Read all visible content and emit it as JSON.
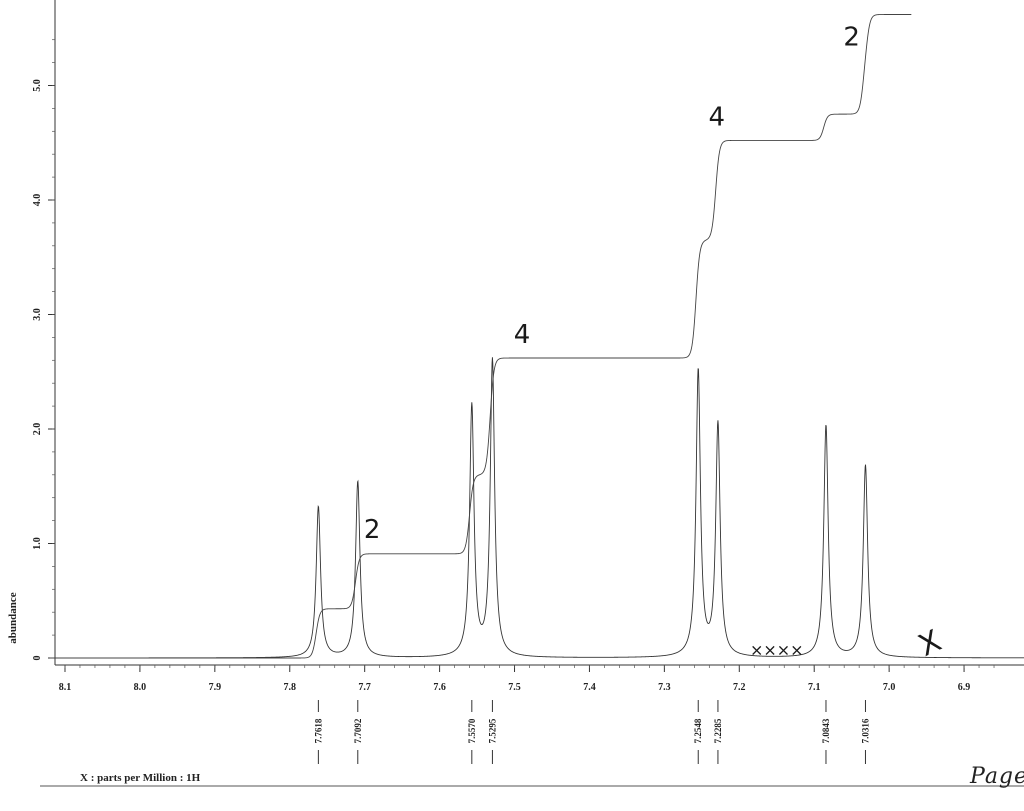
{
  "chart_data": {
    "type": "line",
    "xlabel": "X : parts per Million : 1H",
    "ylabel": "abundance",
    "xlim": [
      8.12,
      6.82
    ],
    "ylim": [
      0,
      5.7
    ],
    "x_ticks": [
      "8.1",
      "8.0",
      "7.9",
      "7.8",
      "7.7",
      "7.6",
      "7.5",
      "7.4",
      "7.3",
      "7.2",
      "7.1",
      "7.0",
      "6.9"
    ],
    "y_ticks": [
      "0",
      "1.0",
      "2.0",
      "3.0",
      "4.0",
      "5.0"
    ],
    "peaks": [
      {
        "ppm": 7.7618,
        "label": "7.7618",
        "height": 1.32
      },
      {
        "ppm": 7.7092,
        "label": "7.7092",
        "height": 1.54
      },
      {
        "ppm": 7.557,
        "label": "7.5570",
        "height": 2.19
      },
      {
        "ppm": 7.5295,
        "label": "7.5295",
        "height": 2.59
      },
      {
        "ppm": 7.2548,
        "label": "7.2548",
        "height": 2.5
      },
      {
        "ppm": 7.2285,
        "label": "7.2285",
        "height": 2.03
      },
      {
        "ppm": 7.0843,
        "label": "7.0843",
        "height": 2.03
      },
      {
        "ppm": 7.0316,
        "label": "7.0316",
        "height": 1.68
      }
    ],
    "integral_steps": [
      {
        "ppm": 7.7618,
        "level": 0.43
      },
      {
        "ppm": 7.7092,
        "level": 0.91
      },
      {
        "ppm": 7.557,
        "level": 1.6
      },
      {
        "ppm": 7.5295,
        "level": 2.62
      },
      {
        "ppm": 7.2548,
        "level": 3.65
      },
      {
        "ppm": 7.2285,
        "level": 4.52
      },
      {
        "ppm": 7.0843,
        "level": 4.75
      },
      {
        "ppm": 7.0316,
        "level": 5.24
      }
    ],
    "integral_end_level": 5.62,
    "handwritten_annotations": [
      {
        "text": "2",
        "ppm": 7.69,
        "y": 1.05
      },
      {
        "text": "4",
        "ppm": 7.49,
        "y": 2.75
      },
      {
        "text": "4",
        "ppm": 7.23,
        "y": 4.65
      },
      {
        "text": "2",
        "ppm": 7.05,
        "y": 5.35
      },
      {
        "text": "××××",
        "ppm": 7.15,
        "y": 0.02
      },
      {
        "text": "X",
        "ppm": 6.94,
        "y": 0.05
      }
    ]
  },
  "page_note": "Page"
}
